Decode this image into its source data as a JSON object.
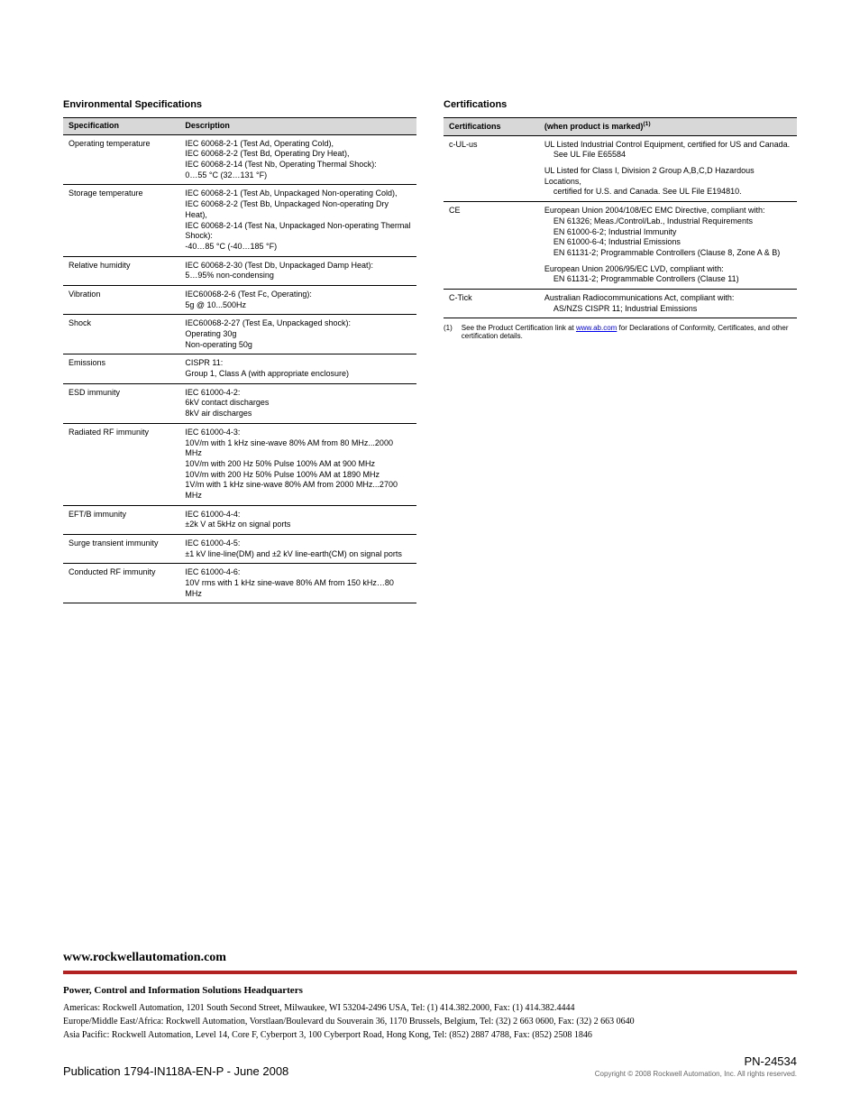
{
  "env": {
    "heading": "Environmental Specifications",
    "columns": [
      "Specification",
      "Description"
    ],
    "rows": [
      {
        "spec": "Operating temperature",
        "desc": "IEC 60068-2-1 (Test Ad, Operating Cold),\nIEC 60068-2-2 (Test Bd, Operating Dry Heat),\nIEC 60068-2-14 (Test Nb, Operating Thermal Shock):\n0…55 °C (32…131 °F)"
      },
      {
        "spec": "Storage temperature",
        "desc": "IEC 60068-2-1 (Test Ab, Unpackaged Non-operating Cold),\nIEC 60068-2-2 (Test Bb, Unpackaged Non-operating Dry Heat),\nIEC 60068-2-14 (Test Na, Unpackaged Non-operating Thermal Shock):\n-40…85 °C (-40…185 °F)"
      },
      {
        "spec": "Relative humidity",
        "desc": "IEC 60068-2-30 (Test Db, Unpackaged Damp Heat):\n5…95% non-condensing"
      },
      {
        "spec": "Vibration",
        "desc": "IEC60068-2-6 (Test Fc, Operating):\n5g @ 10...500Hz"
      },
      {
        "spec": "Shock",
        "desc": "IEC60068-2-27 (Test Ea, Unpackaged shock):\nOperating 30g\nNon-operating 50g"
      },
      {
        "spec": "Emissions",
        "desc": "CISPR 11:\nGroup 1, Class A (with appropriate enclosure)"
      },
      {
        "spec": "ESD immunity",
        "desc": "IEC 61000-4-2:\n6kV contact discharges\n8kV air discharges"
      },
      {
        "spec": "Radiated RF immunity",
        "desc": "IEC 61000-4-3:\n10V/m with 1 kHz sine-wave 80% AM from 80 MHz...2000 MHz\n10V/m with 200 Hz 50% Pulse 100% AM at 900 MHz\n10V/m with 200 Hz 50% Pulse 100% AM at 1890 MHz\n1V/m with 1 kHz sine-wave 80% AM from 2000 MHz...2700 MHz"
      },
      {
        "spec": "EFT/B immunity",
        "desc": "IEC 61000-4-4:\n±2k V at 5kHz on signal ports"
      },
      {
        "spec": "Surge transient immunity",
        "desc": "IEC 61000-4-5:\n±1 kV line-line(DM) and ±2 kV line-earth(CM) on signal ports"
      },
      {
        "spec": "Conducted RF immunity",
        "desc": "IEC 61000-4-6:\n10V rms with 1 kHz sine-wave 80% AM from 150 kHz…80 MHz"
      }
    ]
  },
  "cert": {
    "heading": "Certifications",
    "columns": [
      "Certifications",
      "(when product is marked)"
    ],
    "rows": [
      {
        "spec": "c-UL-us",
        "desc": [
          "UL Listed Industrial Control Equipment, certified for US and Canada.\n   See UL File E65584",
          "UL Listed for Class I, Division 2 Group A,B,C,D Hazardous Locations,\n   certified for U.S. and Canada. See UL File E194810."
        ]
      },
      {
        "spec": "CE",
        "desc": [
          "European Union 2004/108/EC EMC Directive, compliant with:\n   EN 61326; Meas./Control/Lab., Industrial Requirements\n   EN 61000-6-2; Industrial Immunity\n   EN 61000-6-4; Industrial Emissions\n   EN 61131-2; Programmable Controllers (Clause 8, Zone A & B)",
          "European Union 2006/95/EC LVD, compliant with:\n   EN 61131-2; Programmable Controllers (Clause 11)"
        ]
      },
      {
        "spec": "C-Tick",
        "desc": [
          "Australian Radiocommunications Act, compliant with:\n   AS/NZS CISPR 11; Industrial Emissions"
        ]
      }
    ],
    "footnote_mark": "(1)",
    "footnote_pre": "See the Product Certification link at ",
    "footnote_link": "www.ab.com",
    "footnote_post": " for Declarations of Conformity, Certificates, and other certification details."
  },
  "footer": {
    "url": "www.rockwellautomation.com",
    "hq_heading": "Power, Control and Information Solutions Headquarters",
    "addr1": "Americas: Rockwell Automation, 1201 South Second Street, Milwaukee, WI 53204-2496 USA, Tel: (1) 414.382.2000, Fax: (1) 414.382.4444",
    "addr2": "Europe/Middle East/Africa: Rockwell Automation, Vorstlaan/Boulevard du Souverain 36, 1170 Brussels, Belgium, Tel: (32) 2 663 0600, Fax: (32) 2 663 0640",
    "addr3": "Asia Pacific: Rockwell Automation, Level 14, Core F, Cyberport 3, 100 Cyberport Road, Hong Kong, Tel: (852) 2887 4788, Fax: (852) 2508 1846",
    "pub": "Publication 1794-IN118A-EN-P - June 2008",
    "pn": "PN-24534",
    "copyright": "Copyright © 2008 Rockwell Automation, Inc. All rights reserved."
  },
  "colors": {
    "header_bg": "#d8d8d8",
    "border": "#000000",
    "accent_bar": "#b22222",
    "link": "#0000ee",
    "copy_text": "#666666"
  }
}
